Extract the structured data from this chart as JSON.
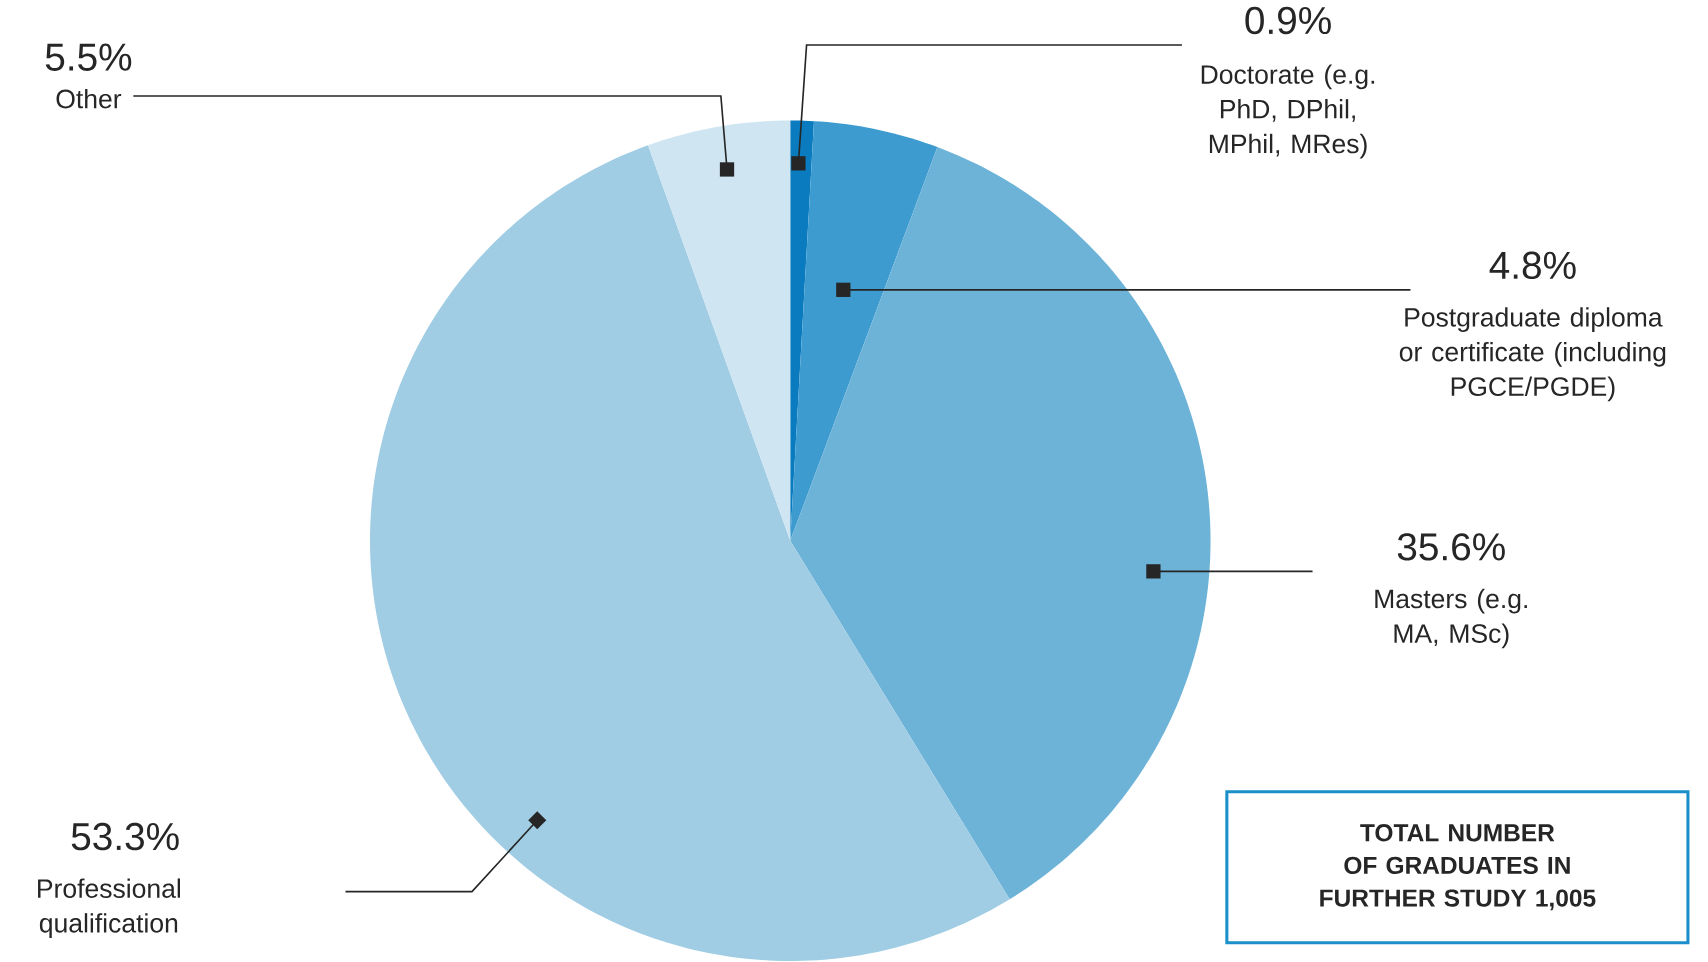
{
  "chart_data": {
    "type": "pie",
    "categories": [
      "Doctorate (e.g. PhD, DPhil, MPhil, MRes)",
      "Postgraduate diploma or certificate (including PGCE/PGDE)",
      "Masters (e.g. MA, MSc)",
      "Professional qualification",
      "Other"
    ],
    "values": [
      0.9,
      4.8,
      35.6,
      53.3,
      5.5
    ],
    "colors": [
      "#0a7bbf",
      "#3d9bd0",
      "#6db3d8",
      "#a0cde4",
      "#cfe5f2"
    ],
    "value_labels": [
      "0.9%",
      "4.8%",
      "35.6%",
      "53.3%",
      "5.5%"
    ],
    "annotations": [
      "TOTAL NUMBER OF GRADUATES IN FURTHER STUDY 1,005"
    ]
  }
}
